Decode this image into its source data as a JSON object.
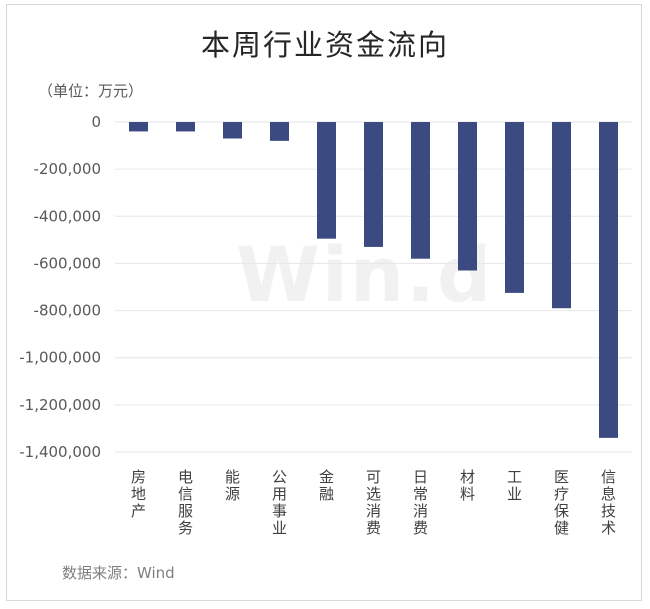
{
  "chart_data": {
    "type": "bar",
    "title": "本周行业资金流向",
    "unit_label": "（单位：万元）",
    "source": "数据来源：Wind",
    "watermark": "Win.d",
    "categories": [
      "房地产",
      "电信服务",
      "能源",
      "公用事业",
      "金融",
      "可选消费",
      "日常消费",
      "材料",
      "工业",
      "医疗保健",
      "信息技术"
    ],
    "values": [
      -40000,
      -40000,
      -70000,
      -80000,
      -495000,
      -530000,
      -580000,
      -630000,
      -725000,
      -790000,
      -1340000
    ],
    "ylim": [
      -1400000,
      0
    ],
    "yticks": [
      0,
      -200000,
      -400000,
      -600000,
      -800000,
      -1000000,
      -1200000,
      -1400000
    ],
    "ytick_labels": [
      "0",
      "-200,000",
      "-400,000",
      "-600,000",
      "-800,000",
      "-1,000,000",
      "-1,200,000",
      "-1,400,000"
    ],
    "bar_color": "#3b4a80",
    "grid": true
  }
}
